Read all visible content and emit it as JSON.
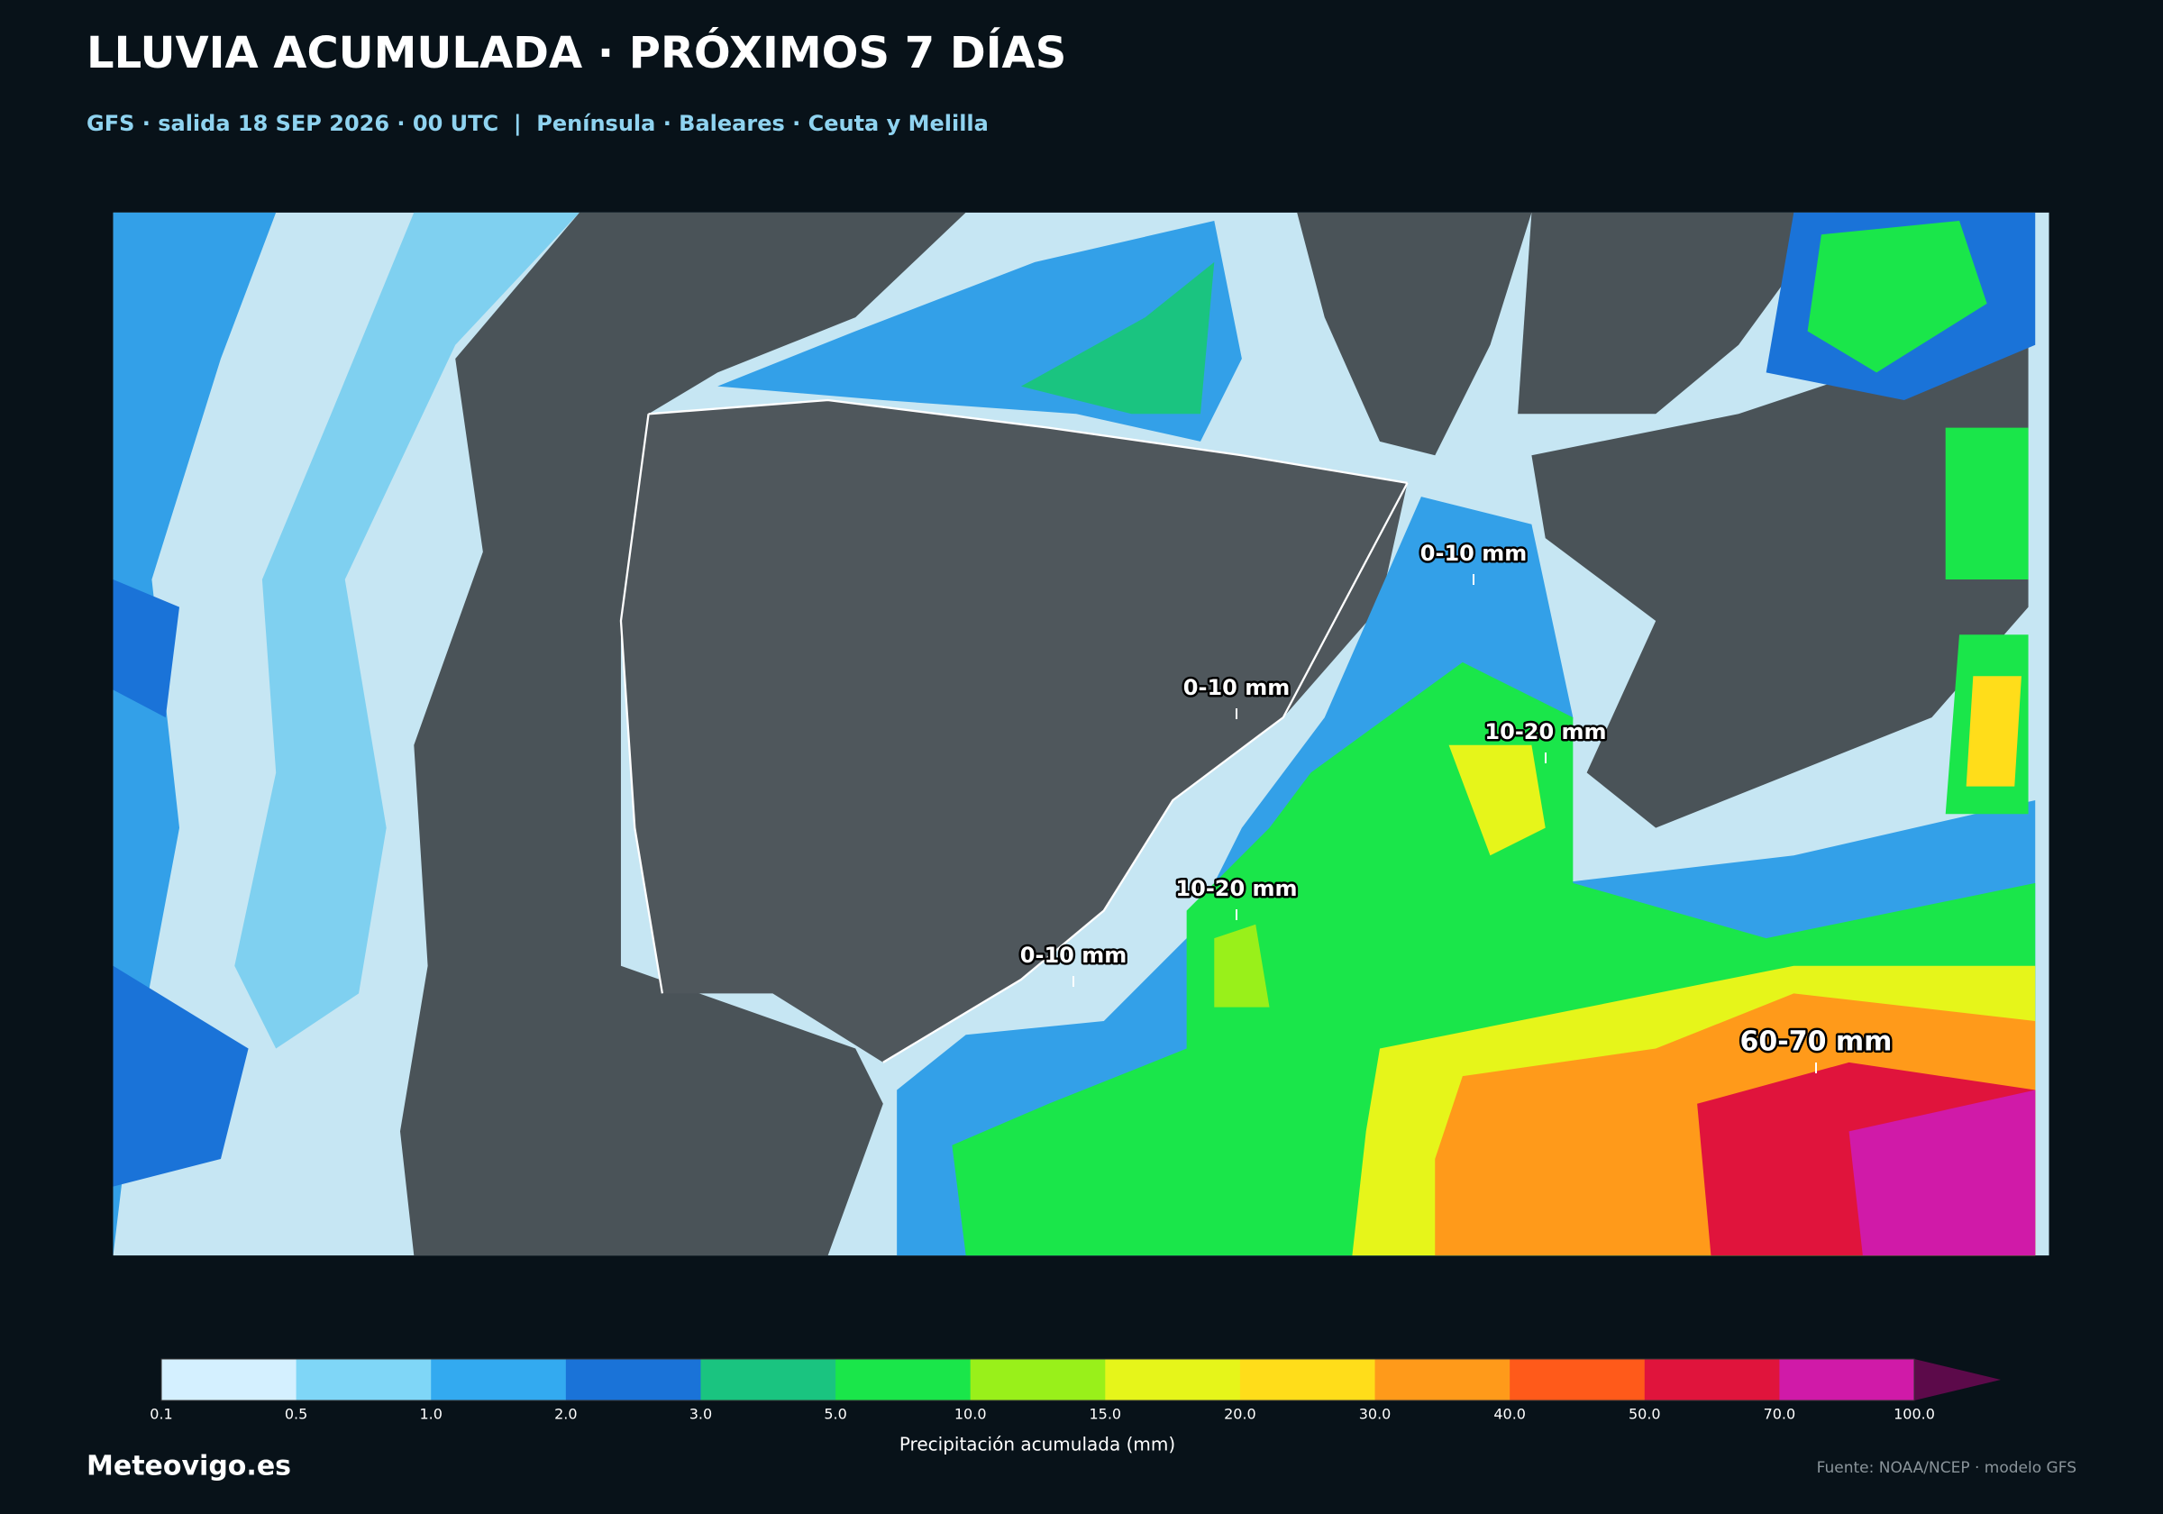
{
  "header": {
    "title": "LLUVIA ACUMULADA · PRÓXIMOS 7 DÍAS",
    "subtitle": "GFS · salida 18 SEP 2026 · 00 UTC  |  Península · Baleares · Ceuta y Melilla"
  },
  "map": {
    "labels": [
      "0-10 mm",
      "0-10 mm",
      "10-20 mm",
      "10-20 mm",
      "0-10 mm",
      "60-70 mm"
    ]
  },
  "colorbar": {
    "title": "Precipitación acumulada (mm)",
    "ticks": [
      "0.1",
      "0.5",
      "1.0",
      "2.0",
      "3.0",
      "5.0",
      "10.0",
      "15.0",
      "20.0",
      "30.0",
      "40.0",
      "50.0",
      "70.0",
      "100.0"
    ],
    "colors": [
      "#d4f0ff",
      "#7fd6f7",
      "#33aaf0",
      "#1a73d8",
      "#1ac480",
      "#1ae64a",
      "#99f01a",
      "#e6f51a",
      "#ffdd1a",
      "#ff9a1a",
      "#ff5a1a",
      "#e0143c",
      "#d01aa8"
    ],
    "extend_color": "#5c0a4a"
  },
  "footer": {
    "brand": "Meteovigo.es",
    "source": "Fuente: NOAA/NCEP · modelo GFS"
  }
}
